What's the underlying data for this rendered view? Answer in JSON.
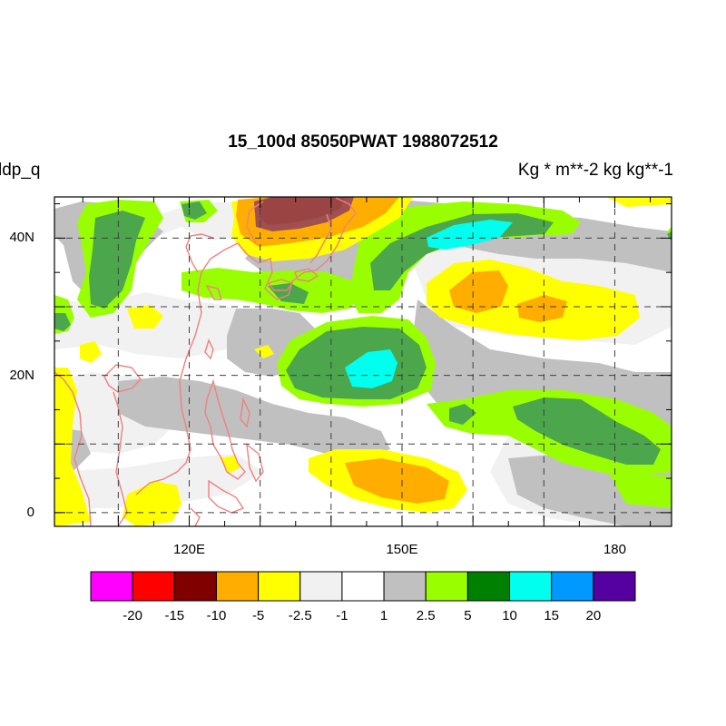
{
  "header": {
    "title": "15_100d 85050PWAT  1988072512",
    "left_label": "ldp_q",
    "right_label": "Kg  * m**-2 kg kg**-1"
  },
  "axes": {
    "lon_ticks": [
      {
        "lon": 120,
        "label": "120E"
      },
      {
        "lon": 150,
        "label": "150E"
      },
      {
        "lon": 180,
        "label": "180"
      }
    ],
    "lat_ticks": [
      {
        "lat": 0,
        "label": "0"
      },
      {
        "lat": 20,
        "label": "20N"
      },
      {
        "lat": 40,
        "label": "40N"
      }
    ],
    "lon_range": [
      101,
      188
    ],
    "lat_range": [
      -2,
      46
    ],
    "grid_spacing_deg": 10,
    "grid_style": "dashed"
  },
  "colorbar": {
    "colors": [
      "#ff00ff",
      "#ff0000",
      "#800000",
      "#ffae00",
      "#ffff00",
      "#f1f1f1",
      "#ffffff",
      "#c0c0c0",
      "#99ff00",
      "#008000",
      "#00ffee",
      "#0099ff",
      "#5500a0"
    ],
    "labels": [
      "-20",
      "-15",
      "-10",
      "-5",
      "-2.5",
      "-1",
      "1",
      "2.5",
      "5",
      "10",
      "15",
      "20"
    ]
  },
  "coastline_color": "#f08080"
}
